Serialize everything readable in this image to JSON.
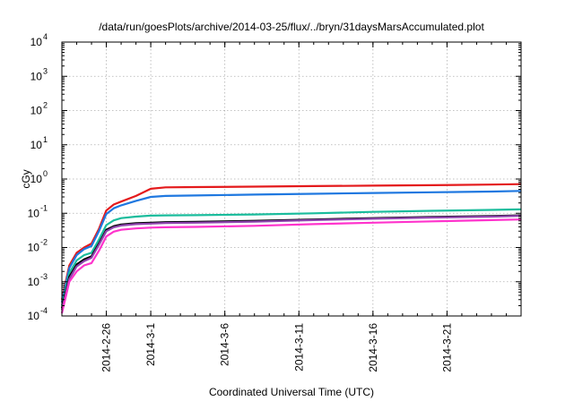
{
  "chart_data": {
    "type": "line",
    "title": "/data/run/goesPlots/archive/2014-03-25/flux/../bryn/31daysMarsAccumulated.plot",
    "xlabel": "Coordinated Universal Time (UTC)",
    "ylabel": "cGy",
    "yscale": "log",
    "ylim": [
      "1e-4",
      "1e4"
    ],
    "xlim": [
      "2014-02-23",
      "2014-03-26"
    ],
    "grid": true,
    "x_ticks": [
      "2014-2-26",
      "2014-3-1",
      "2014-3-6",
      "2014-3-11",
      "2014-3-16",
      "2014-3-21"
    ],
    "y_ticks": [
      {
        "base": "10",
        "exp": "-4"
      },
      {
        "base": "10",
        "exp": "-3"
      },
      {
        "base": "10",
        "exp": "-2"
      },
      {
        "base": "10",
        "exp": "-1"
      },
      {
        "base": "10",
        "exp": "0"
      },
      {
        "base": "10",
        "exp": "1"
      },
      {
        "base": "10",
        "exp": "2"
      },
      {
        "base": "10",
        "exp": "3"
      },
      {
        "base": "10",
        "exp": "4"
      }
    ],
    "x": [
      "2014-02-23",
      "2014-02-23 12:00",
      "2014-02-24",
      "2014-02-24 12:00",
      "2014-02-25",
      "2014-02-25 12:00",
      "2014-02-26",
      "2014-02-26 12:00",
      "2014-02-27",
      "2014-02-28",
      "2014-03-01",
      "2014-03-02",
      "2014-03-04",
      "2014-03-08",
      "2014-03-12",
      "2014-03-16",
      "2014-03-20",
      "2014-03-24",
      "2014-03-26"
    ],
    "series": [
      {
        "color": "#e41a1c",
        "values": [
          0.0003,
          0.003,
          0.007,
          0.01,
          0.013,
          0.035,
          0.12,
          0.18,
          0.22,
          0.32,
          0.52,
          0.57,
          0.58,
          0.6,
          0.62,
          0.64,
          0.66,
          0.69,
          0.71
        ]
      },
      {
        "color": "#1f78e0",
        "values": [
          0.00025,
          0.0025,
          0.006,
          0.009,
          0.011,
          0.03,
          0.095,
          0.14,
          0.17,
          0.23,
          0.3,
          0.32,
          0.33,
          0.35,
          0.37,
          0.39,
          0.41,
          0.43,
          0.45
        ]
      },
      {
        "color": "#1abc9c",
        "values": [
          0.0002,
          0.0018,
          0.0042,
          0.006,
          0.007,
          0.017,
          0.045,
          0.062,
          0.072,
          0.08,
          0.085,
          0.087,
          0.088,
          0.092,
          0.1,
          0.11,
          0.118,
          0.125,
          0.13
        ]
      },
      {
        "color": "#000000",
        "values": [
          0.00017,
          0.0014,
          0.0032,
          0.0045,
          0.0055,
          0.013,
          0.033,
          0.042,
          0.047,
          0.051,
          0.053,
          0.055,
          0.056,
          0.06,
          0.066,
          0.072,
          0.078,
          0.083,
          0.087
        ]
      },
      {
        "color": "#8e44ad",
        "values": [
          0.00015,
          0.0012,
          0.0028,
          0.004,
          0.005,
          0.012,
          0.03,
          0.039,
          0.044,
          0.048,
          0.05,
          0.052,
          0.053,
          0.057,
          0.063,
          0.069,
          0.075,
          0.08,
          0.084
        ]
      },
      {
        "color": "#ff33cc",
        "values": [
          0.00012,
          0.001,
          0.002,
          0.003,
          0.0035,
          0.008,
          0.021,
          0.029,
          0.033,
          0.036,
          0.038,
          0.039,
          0.04,
          0.043,
          0.048,
          0.053,
          0.058,
          0.063,
          0.066
        ]
      }
    ]
  }
}
